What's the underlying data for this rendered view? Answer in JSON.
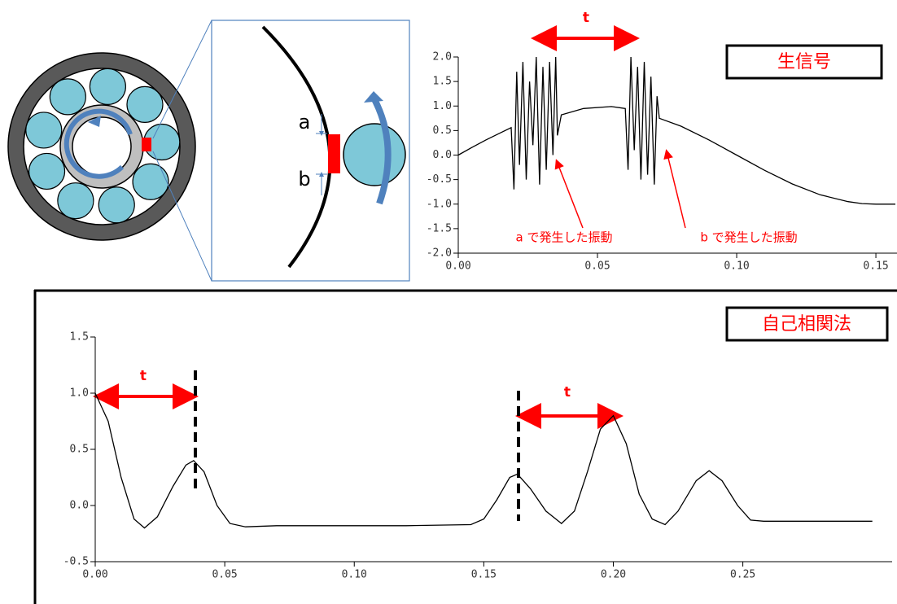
{
  "diagram": {
    "label_a": "a",
    "label_b": "b"
  },
  "chart_data": [
    {
      "type": "line",
      "title": "生信号",
      "color": "#000000",
      "annotations": [
        "t",
        "a で発生した振動",
        "b で発生した振動"
      ],
      "x": [
        0,
        0.005,
        0.01,
        0.015,
        0.019,
        0.02,
        0.021,
        0.022,
        0.0232,
        0.0244,
        0.0256,
        0.0268,
        0.028,
        0.0292,
        0.0304,
        0.0316,
        0.0328,
        0.034,
        0.035,
        0.0356,
        0.037,
        0.045,
        0.055,
        0.06,
        0.061,
        0.062,
        0.0632,
        0.0644,
        0.0656,
        0.0668,
        0.068,
        0.0692,
        0.0704,
        0.0714,
        0.0722,
        0.08,
        0.09,
        0.1,
        0.11,
        0.12,
        0.13,
        0.14,
        0.145,
        0.15,
        0.157
      ],
      "values": [
        0,
        0.16,
        0.31,
        0.45,
        0.56,
        -0.7,
        1.7,
        -0.2,
        1.9,
        -0.5,
        1.5,
        0.2,
        2.0,
        -0.6,
        1.8,
        -0.3,
        1.9,
        0.0,
        2.0,
        0.4,
        0.82,
        0.95,
        0.99,
        0.95,
        -0.3,
        2.0,
        0.1,
        1.8,
        -0.5,
        1.9,
        -0.4,
        1.6,
        -0.6,
        1.2,
        0.75,
        0.59,
        0.31,
        0.0,
        -0.31,
        -0.59,
        -0.81,
        -0.95,
        -0.99,
        -1.0,
        -1.0
      ],
      "xlim": [
        0,
        0.157
      ],
      "ylim": [
        -2,
        2
      ],
      "xticks": [
        {
          "value": 0,
          "label": "0.00"
        },
        {
          "value": 0.05,
          "label": "0.05"
        },
        {
          "value": 0.1,
          "label": "0.10"
        },
        {
          "value": 0.15,
          "label": "0.15"
        }
      ],
      "yticks": [
        {
          "value": 2,
          "label": "2.0"
        },
        {
          "value": 1.5,
          "label": "1.5"
        },
        {
          "value": 1,
          "label": "1.0"
        },
        {
          "value": 0.5,
          "label": "0.5"
        },
        {
          "value": 0,
          "label": "0.0"
        },
        {
          "value": -0.5,
          "label": "-0.5"
        },
        {
          "value": -1,
          "label": "-1.0"
        },
        {
          "value": -1.5,
          "label": "-1.5"
        },
        {
          "value": -2,
          "label": "-2.0"
        }
      ]
    },
    {
      "type": "line",
      "title": "自己相関法",
      "color": "#000000",
      "annotations": [
        "t",
        "t"
      ],
      "x": [
        0,
        0.005,
        0.01,
        0.015,
        0.019,
        0.024,
        0.03,
        0.035,
        0.038,
        0.042,
        0.047,
        0.052,
        0.058,
        0.07,
        0.09,
        0.12,
        0.145,
        0.15,
        0.155,
        0.16,
        0.163,
        0.168,
        0.174,
        0.18,
        0.185,
        0.19,
        0.195,
        0.2,
        0.205,
        0.21,
        0.215,
        0.22,
        0.225,
        0.232,
        0.237,
        0.242,
        0.248,
        0.253,
        0.258,
        0.3
      ],
      "values": [
        1.0,
        0.75,
        0.25,
        -0.12,
        -0.2,
        -0.1,
        0.17,
        0.36,
        0.4,
        0.3,
        0.0,
        -0.16,
        -0.19,
        -0.18,
        -0.18,
        -0.18,
        -0.17,
        -0.12,
        0.05,
        0.25,
        0.28,
        0.15,
        -0.05,
        -0.16,
        -0.05,
        0.3,
        0.68,
        0.8,
        0.55,
        0.1,
        -0.12,
        -0.17,
        -0.05,
        0.22,
        0.31,
        0.22,
        0.0,
        -0.13,
        -0.14,
        -0.14
      ],
      "xlim": [
        0,
        0.307
      ],
      "ylim": [
        -0.5,
        1.5
      ],
      "xticks": [
        {
          "value": 0,
          "label": "0.00"
        },
        {
          "value": 0.05,
          "label": "0.05"
        },
        {
          "value": 0.1,
          "label": "0.10"
        },
        {
          "value": 0.15,
          "label": "0.15"
        },
        {
          "value": 0.2,
          "label": "0.20"
        },
        {
          "value": 0.25,
          "label": "0.25"
        }
      ],
      "yticks": [
        {
          "value": 1.5,
          "label": "1.5"
        },
        {
          "value": 1,
          "label": "1.0"
        },
        {
          "value": 0.5,
          "label": "0.5"
        },
        {
          "value": 0,
          "label": "0.0"
        },
        {
          "value": -0.5,
          "label": "-0.5"
        }
      ]
    }
  ]
}
